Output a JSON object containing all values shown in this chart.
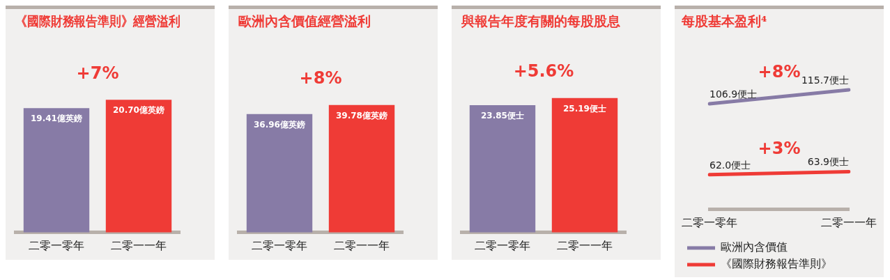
{
  "chart_data": [
    {
      "type": "bar",
      "title": "《國際財務報告準則》經營溢利",
      "categories": [
        "二零一零年",
        "二零一一年"
      ],
      "values": [
        19.41,
        20.7
      ],
      "colors": [
        "#877ba6",
        "#ef3b36"
      ],
      "value_labels": [
        "19.41億英鎊",
        "20.70億英鎊"
      ],
      "tick_labels": "x",
      "grid": false,
      "annotations": [
        "+7%"
      ]
    },
    {
      "type": "bar",
      "title": "歐洲內含價值經營溢利",
      "categories": [
        "二零一零年",
        "二零一一年"
      ],
      "values": [
        36.96,
        39.78
      ],
      "colors": [
        "#877ba6",
        "#ef3b36"
      ],
      "value_labels": [
        "36.96億英鎊",
        "39.78億英鎊"
      ],
      "tick_labels": "x",
      "grid": false,
      "annotations": [
        "+8%"
      ]
    },
    {
      "type": "bar",
      "title": "與報告年度有關的每股股息",
      "categories": [
        "二零一零年",
        "二零一一年"
      ],
      "values": [
        23.85,
        25.19
      ],
      "colors": [
        "#877ba6",
        "#ef3b36"
      ],
      "value_labels": [
        "23.85便士",
        "25.19便士"
      ],
      "tick_labels": "x",
      "grid": false,
      "annotations": [
        "+5.6%"
      ]
    },
    {
      "type": "line",
      "title": "每股基本盈利⁴",
      "categories": [
        "二零一零年",
        "二零一一年"
      ],
      "series": [
        {
          "name": "歐洲內含價值",
          "color": "#877ba6",
          "values": [
            106.9,
            115.7
          ],
          "value_labels": [
            "106.9便士",
            "115.7便士"
          ]
        },
        {
          "name": "《國際財務報告準則》",
          "color": "#ef3b36",
          "values": [
            62.0,
            63.9
          ],
          "value_labels": [
            "62.0便士",
            "63.9便士"
          ]
        }
      ],
      "grid": false,
      "legend": "bottom",
      "tick_labels": "x",
      "marker": "none",
      "annotations": [
        {
          "text": "+8%",
          "y": 111.3
        },
        {
          "text": "+3%",
          "y": 63
        }
      ]
    }
  ]
}
